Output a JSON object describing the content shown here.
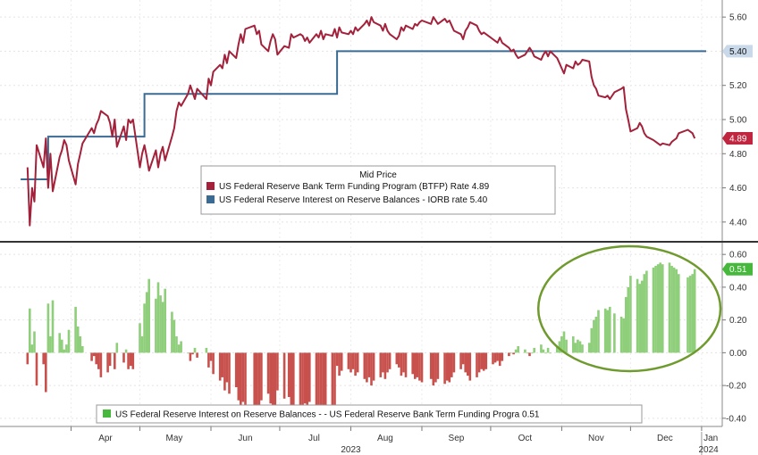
{
  "chart_data": [
    {
      "type": "line",
      "legend_title": "Mid Price",
      "x_axis": {
        "start": "2023-03-01",
        "end": "2024-01-10"
      },
      "ylim": [
        4.3,
        5.7
      ],
      "yticks": [
        "5.60",
        "5.40",
        "5.20",
        "5.00",
        "4.80",
        "4.60",
        "4.40"
      ],
      "grid": true,
      "legend_position": "bottom-center",
      "series": [
        {
          "name": "US Federal Reserve Bank Term Funding Program (BTFP) Rate",
          "legend_value": "4.89",
          "last_value_tag": "4.89",
          "color": "#a3213a",
          "points": [
            [
              "2023-03-13",
              4.72
            ],
            [
              "2023-03-14",
              4.38
            ],
            [
              "2023-03-15",
              4.6
            ],
            [
              "2023-03-16",
              4.52
            ],
            [
              "2023-03-17",
              4.85
            ],
            [
              "2023-03-20",
              4.72
            ],
            [
              "2023-03-21",
              4.89
            ],
            [
              "2023-03-22",
              4.6
            ],
            [
              "2023-03-23",
              4.8
            ],
            [
              "2023-03-24",
              4.58
            ],
            [
              "2023-03-27",
              4.78
            ],
            [
              "2023-03-28",
              4.82
            ],
            [
              "2023-03-29",
              4.88
            ],
            [
              "2023-03-30",
              4.85
            ],
            [
              "2023-03-31",
              4.76
            ],
            [
              "2023-04-03",
              4.62
            ],
            [
              "2023-04-04",
              4.74
            ],
            [
              "2023-04-05",
              4.8
            ],
            [
              "2023-04-06",
              4.86
            ],
            [
              "2023-04-10",
              4.95
            ],
            [
              "2023-04-11",
              4.92
            ],
            [
              "2023-04-12",
              4.97
            ],
            [
              "2023-04-13",
              5.0
            ],
            [
              "2023-04-14",
              5.05
            ],
            [
              "2023-04-17",
              5.02
            ],
            [
              "2023-04-18",
              4.98
            ],
            [
              "2023-04-19",
              4.9
            ],
            [
              "2023-04-20",
              5.0
            ],
            [
              "2023-04-21",
              4.84
            ],
            [
              "2023-04-24",
              4.96
            ],
            [
              "2023-04-25",
              4.88
            ],
            [
              "2023-04-26",
              5.0
            ],
            [
              "2023-04-27",
              4.98
            ],
            [
              "2023-04-28",
              5.0
            ],
            [
              "2023-05-01",
              4.72
            ],
            [
              "2023-05-02",
              4.8
            ],
            [
              "2023-05-03",
              4.85
            ],
            [
              "2023-05-04",
              4.78
            ],
            [
              "2023-05-05",
              4.7
            ],
            [
              "2023-05-08",
              4.82
            ],
            [
              "2023-05-09",
              4.72
            ],
            [
              "2023-05-10",
              4.8
            ],
            [
              "2023-05-11",
              4.84
            ],
            [
              "2023-05-12",
              4.76
            ],
            [
              "2023-05-15",
              4.9
            ],
            [
              "2023-05-16",
              4.95
            ],
            [
              "2023-05-17",
              5.05
            ],
            [
              "2023-05-18",
              5.1
            ],
            [
              "2023-05-19",
              5.08
            ],
            [
              "2023-05-22",
              5.15
            ],
            [
              "2023-05-23",
              5.2
            ],
            [
              "2023-05-24",
              5.16
            ],
            [
              "2023-05-25",
              5.12
            ],
            [
              "2023-05-26",
              5.18
            ],
            [
              "2023-05-30",
              5.12
            ],
            [
              "2023-05-31",
              5.24
            ],
            [
              "2023-06-01",
              5.2
            ],
            [
              "2023-06-02",
              5.28
            ],
            [
              "2023-06-05",
              5.32
            ],
            [
              "2023-06-06",
              5.3
            ],
            [
              "2023-06-07",
              5.38
            ],
            [
              "2023-06-08",
              5.33
            ],
            [
              "2023-06-09",
              5.4
            ],
            [
              "2023-06-12",
              5.36
            ],
            [
              "2023-06-13",
              5.44
            ],
            [
              "2023-06-14",
              5.5
            ],
            [
              "2023-06-15",
              5.45
            ],
            [
              "2023-06-16",
              5.53
            ],
            [
              "2023-06-20",
              5.55
            ],
            [
              "2023-06-21",
              5.5
            ],
            [
              "2023-06-22",
              5.52
            ],
            [
              "2023-06-23",
              5.44
            ],
            [
              "2023-06-26",
              5.4
            ],
            [
              "2023-06-27",
              5.46
            ],
            [
              "2023-06-28",
              5.5
            ],
            [
              "2023-06-29",
              5.47
            ],
            [
              "2023-06-30",
              5.38
            ],
            [
              "2023-07-03",
              5.43
            ],
            [
              "2023-07-05",
              5.42
            ],
            [
              "2023-07-06",
              5.5
            ],
            [
              "2023-07-07",
              5.48
            ],
            [
              "2023-07-10",
              5.5
            ],
            [
              "2023-07-11",
              5.49
            ],
            [
              "2023-07-12",
              5.46
            ],
            [
              "2023-07-13",
              5.48
            ],
            [
              "2023-07-14",
              5.45
            ],
            [
              "2023-07-17",
              5.5
            ],
            [
              "2023-07-18",
              5.48
            ],
            [
              "2023-07-19",
              5.52
            ],
            [
              "2023-07-20",
              5.47
            ],
            [
              "2023-07-21",
              5.5
            ],
            [
              "2023-07-24",
              5.49
            ],
            [
              "2023-07-25",
              5.53
            ],
            [
              "2023-07-26",
              5.48
            ],
            [
              "2023-07-27",
              5.54
            ],
            [
              "2023-07-28",
              5.51
            ],
            [
              "2023-07-31",
              5.5
            ],
            [
              "2023-08-01",
              5.52
            ],
            [
              "2023-08-02",
              5.5
            ],
            [
              "2023-08-03",
              5.54
            ],
            [
              "2023-08-04",
              5.52
            ],
            [
              "2023-08-07",
              5.56
            ],
            [
              "2023-08-08",
              5.58
            ],
            [
              "2023-08-09",
              5.55
            ],
            [
              "2023-08-10",
              5.6
            ],
            [
              "2023-08-11",
              5.57
            ],
            [
              "2023-08-14",
              5.55
            ],
            [
              "2023-08-15",
              5.52
            ],
            [
              "2023-08-16",
              5.56
            ],
            [
              "2023-08-17",
              5.52
            ],
            [
              "2023-08-18",
              5.5
            ],
            [
              "2023-08-21",
              5.47
            ],
            [
              "2023-08-22",
              5.49
            ],
            [
              "2023-08-23",
              5.54
            ],
            [
              "2023-08-24",
              5.52
            ],
            [
              "2023-08-25",
              5.55
            ],
            [
              "2023-08-28",
              5.53
            ],
            [
              "2023-08-29",
              5.56
            ],
            [
              "2023-08-30",
              5.55
            ],
            [
              "2023-08-31",
              5.57
            ],
            [
              "2023-09-01",
              5.58
            ],
            [
              "2023-09-05",
              5.56
            ],
            [
              "2023-09-06",
              5.6
            ],
            [
              "2023-09-07",
              5.58
            ],
            [
              "2023-09-08",
              5.56
            ],
            [
              "2023-09-11",
              5.59
            ],
            [
              "2023-09-12",
              5.57
            ],
            [
              "2023-09-13",
              5.58
            ],
            [
              "2023-09-14",
              5.55
            ],
            [
              "2023-09-15",
              5.52
            ],
            [
              "2023-09-18",
              5.5
            ],
            [
              "2023-09-19",
              5.47
            ],
            [
              "2023-09-20",
              5.52
            ],
            [
              "2023-09-21",
              5.54
            ],
            [
              "2023-09-22",
              5.57
            ],
            [
              "2023-09-25",
              5.55
            ],
            [
              "2023-09-26",
              5.52
            ],
            [
              "2023-09-27",
              5.5
            ],
            [
              "2023-09-28",
              5.51
            ],
            [
              "2023-09-29",
              5.5
            ],
            [
              "2023-10-02",
              5.47
            ],
            [
              "2023-10-03",
              5.46
            ],
            [
              "2023-10-04",
              5.45
            ],
            [
              "2023-10-05",
              5.48
            ],
            [
              "2023-10-06",
              5.45
            ],
            [
              "2023-10-09",
              5.42
            ],
            [
              "2023-10-10",
              5.4
            ],
            [
              "2023-10-11",
              5.41
            ],
            [
              "2023-10-12",
              5.38
            ],
            [
              "2023-10-13",
              5.36
            ],
            [
              "2023-10-16",
              5.38
            ],
            [
              "2023-10-17",
              5.4
            ],
            [
              "2023-10-18",
              5.42
            ],
            [
              "2023-10-19",
              5.4
            ],
            [
              "2023-10-20",
              5.37
            ],
            [
              "2023-10-23",
              5.35
            ],
            [
              "2023-10-24",
              5.38
            ],
            [
              "2023-10-25",
              5.4
            ],
            [
              "2023-10-26",
              5.37
            ],
            [
              "2023-10-27",
              5.4
            ],
            [
              "2023-10-30",
              5.36
            ],
            [
              "2023-10-31",
              5.33
            ],
            [
              "2023-11-01",
              5.3
            ],
            [
              "2023-11-02",
              5.27
            ],
            [
              "2023-11-03",
              5.32
            ],
            [
              "2023-11-06",
              5.3
            ],
            [
              "2023-11-07",
              5.34
            ],
            [
              "2023-11-08",
              5.32
            ],
            [
              "2023-11-09",
              5.33
            ],
            [
              "2023-11-10",
              5.35
            ],
            [
              "2023-11-13",
              5.34
            ],
            [
              "2023-11-14",
              5.25
            ],
            [
              "2023-11-15",
              5.2
            ],
            [
              "2023-11-16",
              5.18
            ],
            [
              "2023-11-17",
              5.14
            ],
            [
              "2023-11-20",
              5.13
            ],
            [
              "2023-11-21",
              5.14
            ],
            [
              "2023-11-22",
              5.12
            ],
            [
              "2023-11-24",
              5.16
            ],
            [
              "2023-11-27",
              5.18
            ],
            [
              "2023-11-28",
              5.19
            ],
            [
              "2023-11-29",
              5.06
            ],
            [
              "2023-11-30",
              5.0
            ],
            [
              "2023-12-01",
              4.93
            ],
            [
              "2023-12-04",
              4.95
            ],
            [
              "2023-12-05",
              4.98
            ],
            [
              "2023-12-06",
              4.96
            ],
            [
              "2023-12-07",
              4.92
            ],
            [
              "2023-12-08",
              4.9
            ],
            [
              "2023-12-11",
              4.88
            ],
            [
              "2023-12-12",
              4.87
            ],
            [
              "2023-12-13",
              4.86
            ],
            [
              "2023-12-14",
              4.85
            ],
            [
              "2023-12-15",
              4.86
            ],
            [
              "2023-12-18",
              4.85
            ],
            [
              "2023-12-19",
              4.87
            ],
            [
              "2023-12-20",
              4.88
            ],
            [
              "2023-12-21",
              4.89
            ],
            [
              "2023-12-22",
              4.92
            ],
            [
              "2023-12-26",
              4.94
            ],
            [
              "2023-12-27",
              4.93
            ],
            [
              "2023-12-28",
              4.92
            ],
            [
              "2023-12-29",
              4.89
            ]
          ]
        },
        {
          "name": "US Federal Reserve Interest on Reserve Balances - IORB rate",
          "legend_value": "5.40",
          "last_value_tag": "5.40",
          "color": "#3b6b93",
          "step": true,
          "points": [
            [
              "2023-03-10",
              4.65
            ],
            [
              "2023-03-22",
              4.65
            ],
            [
              "2023-03-22",
              4.9
            ],
            [
              "2023-05-03",
              4.9
            ],
            [
              "2023-05-03",
              5.15
            ],
            [
              "2023-07-26",
              5.15
            ],
            [
              "2023-07-26",
              5.4
            ],
            [
              "2024-01-03",
              5.4
            ]
          ]
        }
      ]
    },
    {
      "type": "bar",
      "ylim": [
        -0.45,
        0.65
      ],
      "yticks": [
        "0.60",
        "0.40",
        "0.20",
        "0.00",
        "-0.20",
        "-0.40"
      ],
      "grid": true,
      "legend_position": "bottom-center",
      "series": [
        {
          "name": "US Federal Reserve Interest on Reserve Balances - - US Federal Reserve Bank Term Funding Progra",
          "legend_value": "0.51",
          "last_value_tag": "0.51",
          "positive_color": "#8fce7a",
          "negative_color": "#c8514d"
        }
      ],
      "annotation": {
        "shape": "ellipse",
        "color": "#6f9a2d",
        "around": [
          "2023-10-28",
          "2024-01-03"
        ]
      }
    }
  ],
  "x_axis": {
    "months": [
      "Apr",
      "May",
      "Jun",
      "Jul",
      "Aug",
      "Sep",
      "Oct",
      "Nov",
      "Dec",
      "Jan"
    ],
    "year_labels": [
      "2023",
      "2024"
    ]
  }
}
